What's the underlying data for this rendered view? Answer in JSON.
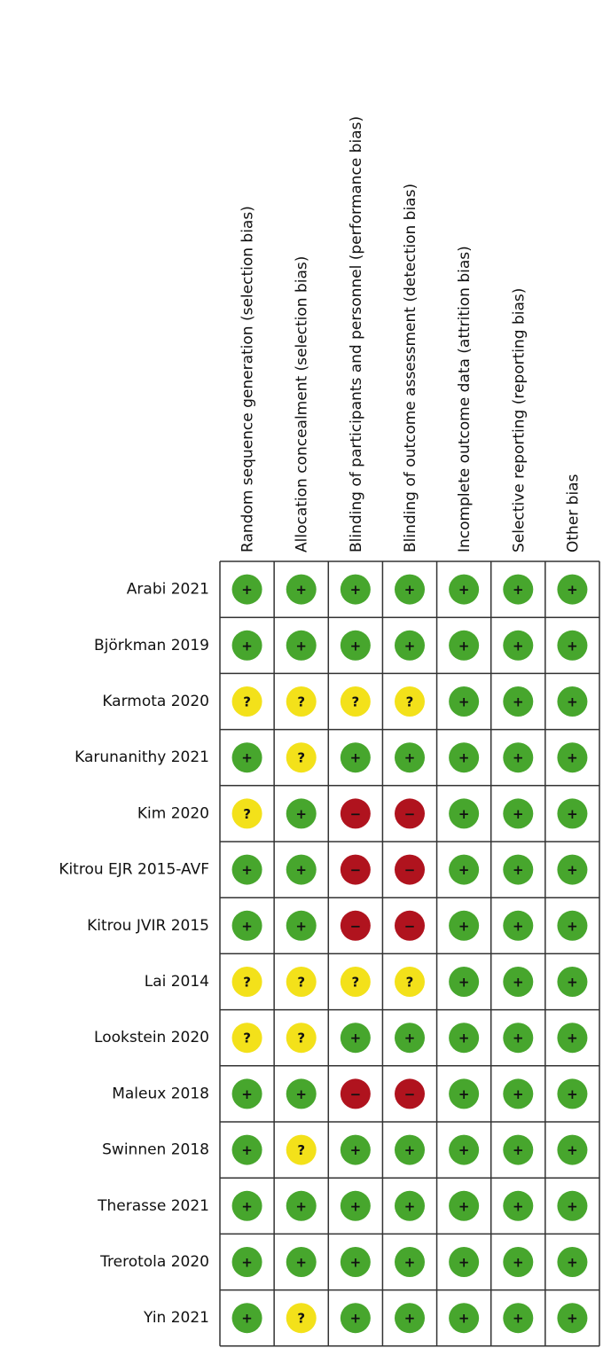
{
  "columns": [
    "Random sequence generation (selection bias)",
    "Allocation concealment (selection bias)",
    "Blinding of participants and personnel (performance bias)",
    "Blinding of outcome assessment (detection bias)",
    "Incomplete outcome data (attrition bias)",
    "Selective reporting (reporting bias)",
    "Other bias"
  ],
  "colors": {
    "+": "#47a62d",
    "?": "#f3e11a",
    "−": "#b0131e"
  },
  "rows": [
    {
      "study": "Arabi 2021",
      "judgments": [
        "+",
        "+",
        "+",
        "+",
        "+",
        "+",
        "+"
      ]
    },
    {
      "study": "Björkman 2019",
      "judgments": [
        "+",
        "+",
        "+",
        "+",
        "+",
        "+",
        "+"
      ]
    },
    {
      "study": "Karmota 2020",
      "judgments": [
        "?",
        "?",
        "?",
        "?",
        "+",
        "+",
        "+"
      ]
    },
    {
      "study": "Karunanithy 2021",
      "judgments": [
        "+",
        "?",
        "+",
        "+",
        "+",
        "+",
        "+"
      ]
    },
    {
      "study": "Kim 2020",
      "judgments": [
        "?",
        "+",
        "−",
        "−",
        "+",
        "+",
        "+"
      ]
    },
    {
      "study": "Kitrou EJR 2015-AVF",
      "judgments": [
        "+",
        "+",
        "−",
        "−",
        "+",
        "+",
        "+"
      ]
    },
    {
      "study": "Kitrou JVIR 2015",
      "judgments": [
        "+",
        "+",
        "−",
        "−",
        "+",
        "+",
        "+"
      ]
    },
    {
      "study": "Lai 2014",
      "judgments": [
        "?",
        "?",
        "?",
        "?",
        "+",
        "+",
        "+"
      ]
    },
    {
      "study": "Lookstein 2020",
      "judgments": [
        "?",
        "?",
        "+",
        "+",
        "+",
        "+",
        "+"
      ]
    },
    {
      "study": "Maleux 2018",
      "judgments": [
        "+",
        "+",
        "−",
        "−",
        "+",
        "+",
        "+"
      ]
    },
    {
      "study": "Swinnen 2018",
      "judgments": [
        "+",
        "?",
        "+",
        "+",
        "+",
        "+",
        "+"
      ]
    },
    {
      "study": "Therasse 2021",
      "judgments": [
        "+",
        "+",
        "+",
        "+",
        "+",
        "+",
        "+"
      ]
    },
    {
      "study": "Trerotola 2020",
      "judgments": [
        "+",
        "+",
        "+",
        "+",
        "+",
        "+",
        "+"
      ]
    },
    {
      "study": "Yin 2021",
      "judgments": [
        "+",
        "?",
        "+",
        "+",
        "+",
        "+",
        "+"
      ]
    }
  ]
}
